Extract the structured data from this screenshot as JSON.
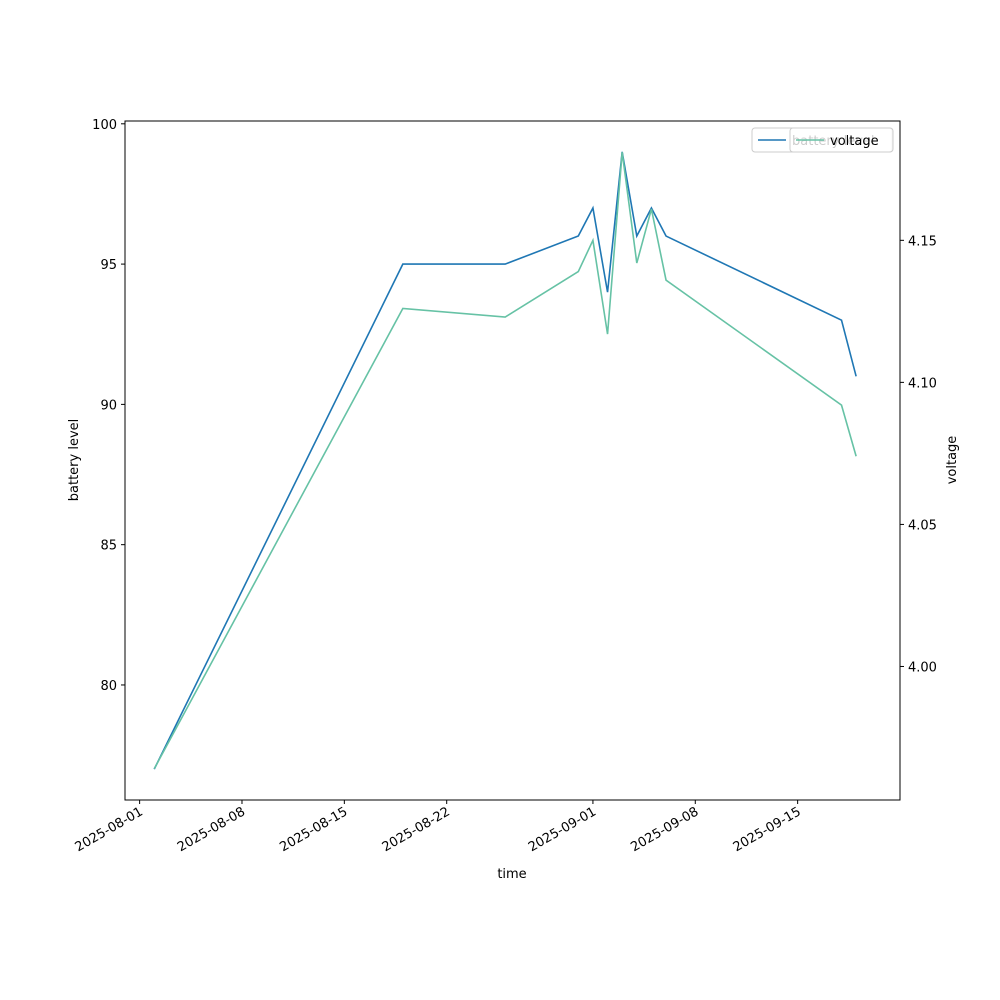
{
  "chart_data": {
    "type": "line",
    "x_label": "time",
    "y_label": "battery level",
    "y2_label": "voltage",
    "x": [
      "2025-08-02",
      "2025-08-19",
      "2025-08-26",
      "2025-08-31",
      "2025-09-01",
      "2025-09-02",
      "2025-09-03",
      "2025-09-04",
      "2025-09-05",
      "2025-09-06",
      "2025-09-18",
      "2025-09-19"
    ],
    "series": [
      {
        "name": "battery level",
        "color": "#1f77b4",
        "values": [
          77,
          95,
          95,
          96,
          97,
          94,
          99,
          96,
          97,
          96,
          93,
          91
        ]
      },
      {
        "name": "voltage",
        "color": "#66c2a5",
        "axis": "y2",
        "values": [
          3.964,
          4.126,
          4.123,
          4.139,
          4.15,
          4.117,
          4.181,
          4.142,
          4.161,
          4.136,
          4.092,
          4.074
        ]
      }
    ],
    "xlim": [
      "2025-07-31",
      "2025-09-22"
    ],
    "xticks": [
      "2025-08-01",
      "2025-08-08",
      "2025-08-15",
      "2025-08-22",
      "2025-09-01",
      "2025-09-08",
      "2025-09-15"
    ],
    "ylim": [
      75.9,
      100.1
    ],
    "yticks": [
      80,
      85,
      90,
      95,
      100
    ],
    "y2lim": [
      3.953,
      4.192
    ],
    "y2ticks": [
      {
        "value": 4.0,
        "label": "4.00"
      },
      {
        "value": 4.05,
        "label": "4.05"
      },
      {
        "value": 4.1,
        "label": "4.10"
      },
      {
        "value": 4.15,
        "label": "4.15"
      }
    ],
    "legend": "upper right"
  }
}
